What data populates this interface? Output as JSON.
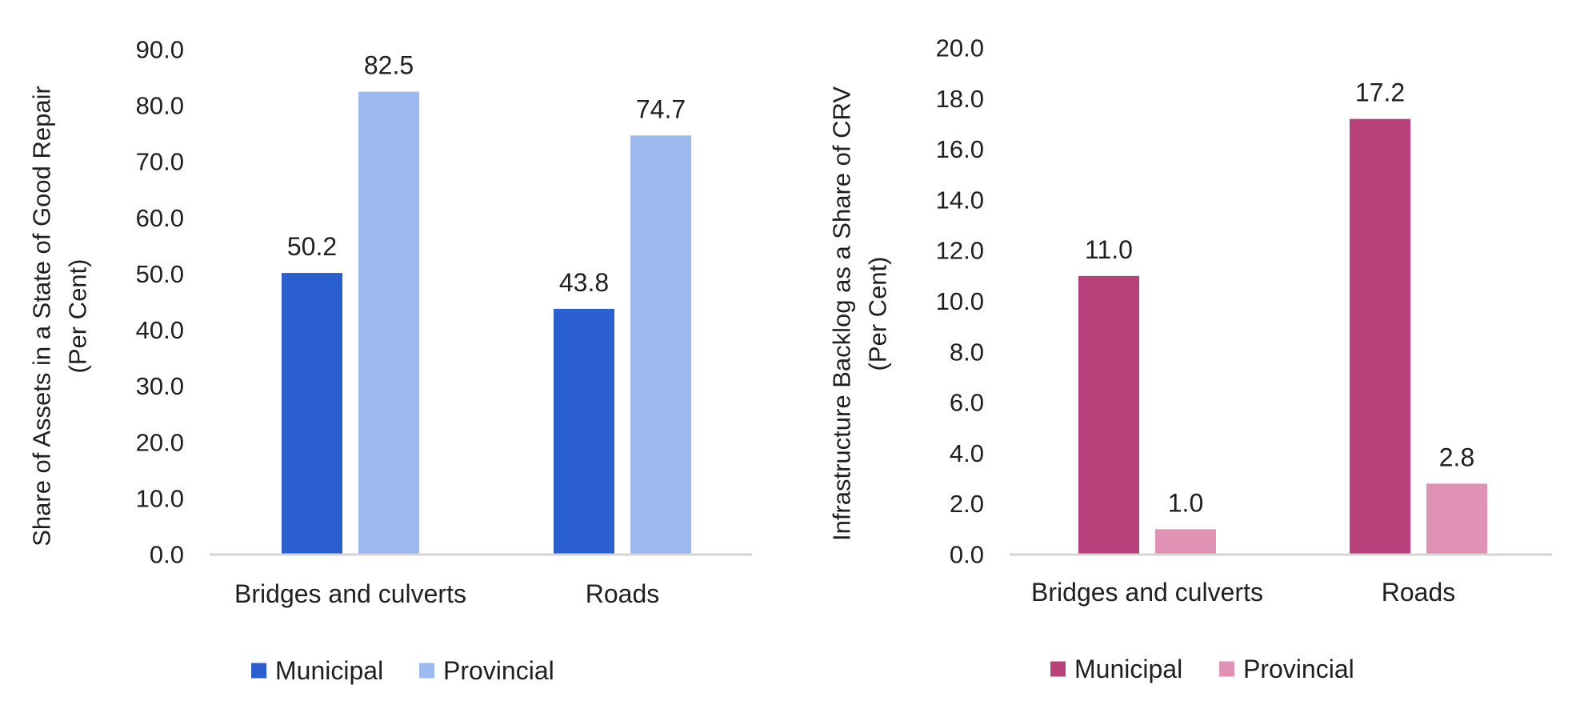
{
  "chart_data": [
    {
      "type": "bar",
      "title": "",
      "ylabel": "Share of Assets in a State of Good Repair (Per Cent)",
      "ylabel_lines": [
        "Share of Assets in a State of Good Repair",
        "(Per Cent)"
      ],
      "xlabel": "",
      "categories": [
        "Bridges and culverts",
        "Roads"
      ],
      "series": [
        {
          "name": "Municipal",
          "values": [
            50.2,
            43.8
          ],
          "color": "#2b5fd0"
        },
        {
          "name": "Provincial",
          "values": [
            82.5,
            74.7
          ],
          "color": "#9cbaf0"
        }
      ],
      "ylim": [
        0,
        90
      ],
      "yticks": [
        "0.0",
        "10.0",
        "20.0",
        "30.0",
        "40.0",
        "50.0",
        "60.0",
        "70.0",
        "80.0",
        "90.0"
      ],
      "data_labels": [
        [
          "50.2",
          "43.8"
        ],
        [
          "82.5",
          "74.7"
        ]
      ],
      "grid": false,
      "legend": "bottom"
    },
    {
      "type": "bar",
      "title": "",
      "ylabel": "Infrastructure Backlog as a Share of CRV (Per Cent)",
      "ylabel_lines": [
        "Infrastructure Backlog as a Share of CRV",
        "(Per Cent)"
      ],
      "xlabel": "",
      "categories": [
        "Bridges and culverts",
        "Roads"
      ],
      "series": [
        {
          "name": "Municipal",
          "values": [
            11.0,
            17.2
          ],
          "color": "#b8417c"
        },
        {
          "name": "Provincial",
          "values": [
            1.0,
            2.8
          ],
          "color": "#df92b4"
        }
      ],
      "ylim": [
        0,
        20
      ],
      "yticks": [
        "0.0",
        "2.0",
        "4.0",
        "6.0",
        "8.0",
        "10.0",
        "12.0",
        "14.0",
        "16.0",
        "18.0",
        "20.0"
      ],
      "data_labels": [
        [
          "11.0",
          "17.2"
        ],
        [
          "1.0",
          "2.8"
        ]
      ],
      "grid": false,
      "legend": "bottom"
    }
  ]
}
